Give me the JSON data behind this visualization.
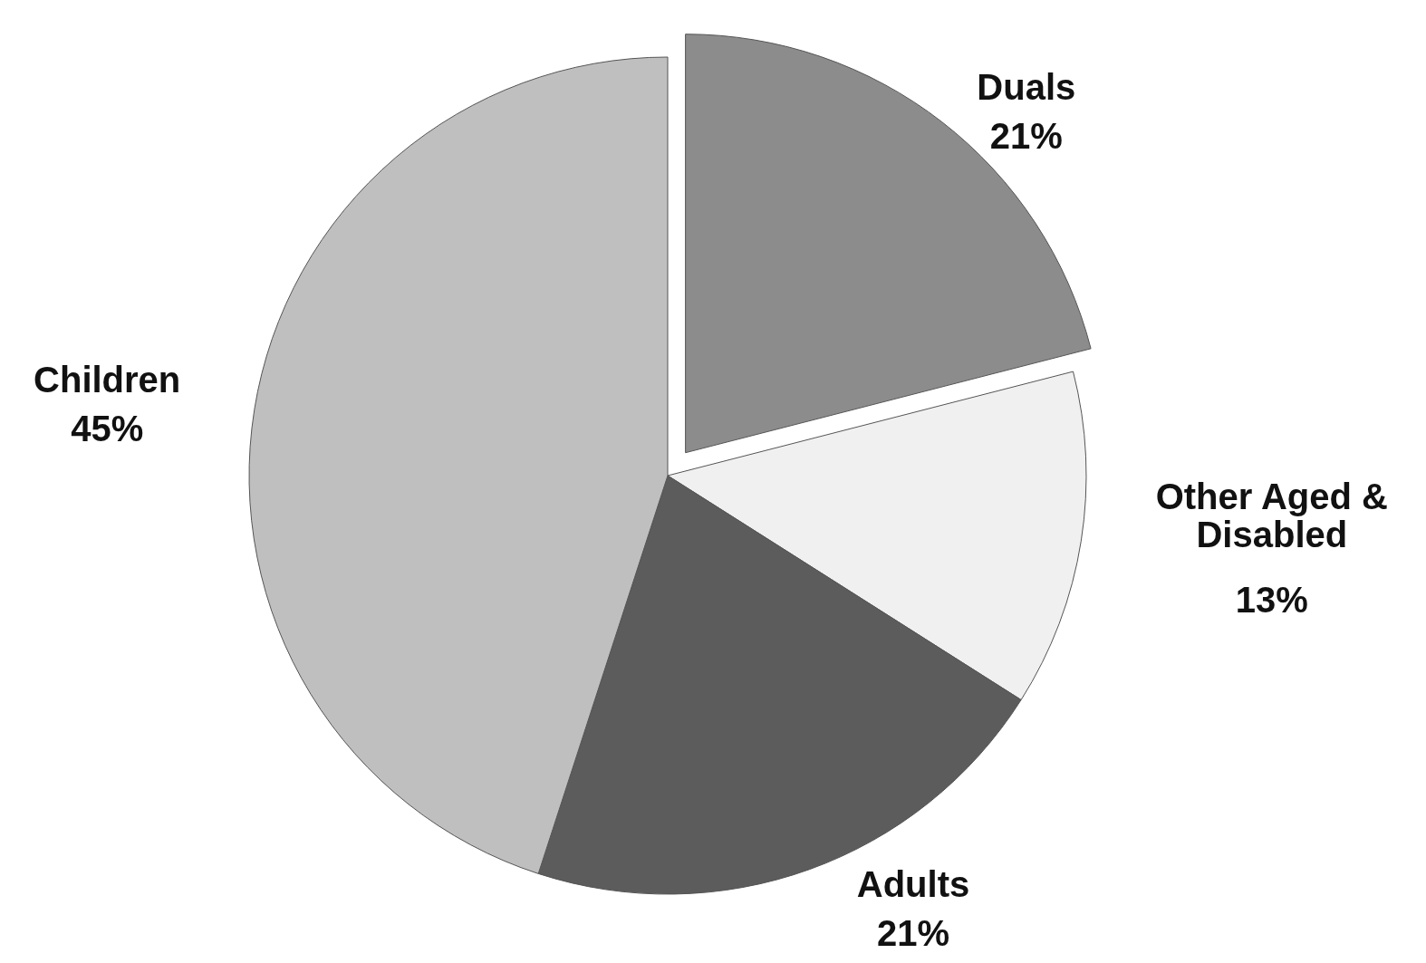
{
  "chart_data": {
    "type": "pie",
    "categories": [
      "Duals",
      "Other Aged & Disabled",
      "Adults",
      "Children"
    ],
    "values": [
      21,
      13,
      21,
      45
    ],
    "colors": [
      "#8c8c8c",
      "#f0f0f0",
      "#5c5c5c",
      "#bfbfbf"
    ],
    "value_labels": [
      "21%",
      "13%",
      "21%",
      "45%"
    ]
  }
}
